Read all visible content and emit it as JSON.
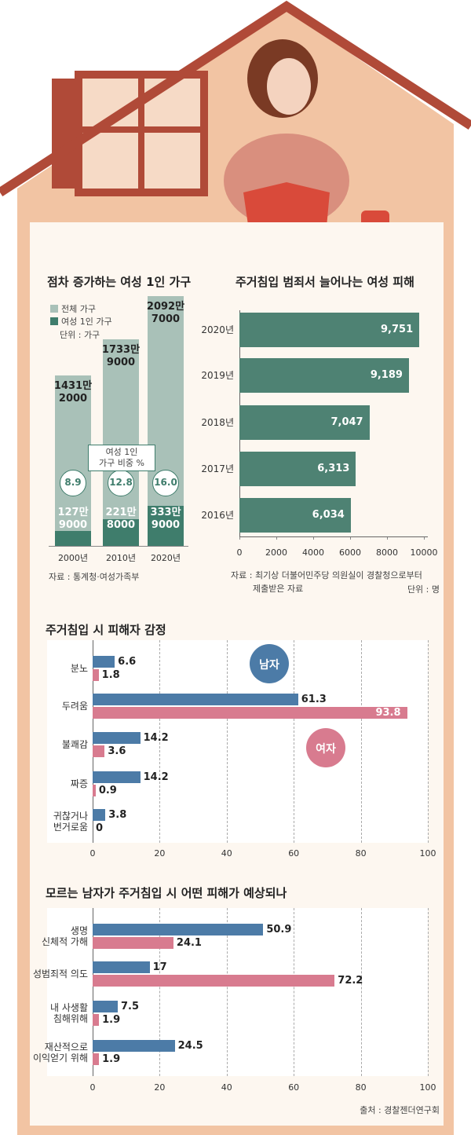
{
  "chart_data": [
    {
      "type": "bar",
      "title": "점차 증가하는 여성 1인 가구",
      "categories": [
        "2000년",
        "2010년",
        "2020년"
      ],
      "series": [
        {
          "name": "전체 가구",
          "color": "#a9c1b8",
          "values": [
            14312000,
            17339000,
            20927000
          ],
          "value_labels": [
            "1431만\n2000",
            "1733만\n9000",
            "2092만\n7000"
          ]
        },
        {
          "name": "여성 1인 가구",
          "color": "#3f7d6c",
          "values": [
            1279000,
            2218000,
            3339000
          ],
          "value_labels": [
            "127만\n9000",
            "221만\n8000",
            "333만\n9000"
          ]
        }
      ],
      "share": {
        "name": "여성 1인\n가구 비중 %",
        "values": [
          8.9,
          12.8,
          16.0
        ],
        "value_labels": [
          "8.9",
          "12.8",
          "16.0"
        ]
      },
      "unit_note": "단위 : 가구",
      "source": "자료 : 통계청·여성가족부"
    },
    {
      "type": "barh",
      "title": "주거침입 범죄서 늘어나는 여성 피해",
      "categories": [
        "2020년",
        "2019년",
        "2018년",
        "2017년",
        "2016년"
      ],
      "values": [
        9751,
        9189,
        7047,
        6313,
        6034
      ],
      "value_labels": [
        "9,751",
        "9,189",
        "7,047",
        "6,313",
        "6,034"
      ],
      "color": "#4e8273",
      "xlim": [
        0,
        10000
      ],
      "xticks": [
        0,
        2000,
        4000,
        6000,
        8000,
        10000
      ],
      "grid": false,
      "note": "자료 : 최기상 더불어민주당 의원실이 경찰청으로부터\n        제출받은 자료",
      "unit_note": "단위 : 명"
    },
    {
      "type": "barh",
      "title": "주거침입 시 피해자 감정",
      "categories": [
        "분노",
        "두려움",
        "불쾌감",
        "짜증",
        "귀찮거나\n번거로움"
      ],
      "series": [
        {
          "name": "남자",
          "color": "#4c7ba7",
          "values": [
            6.6,
            61.3,
            14.2,
            14.2,
            3.8
          ]
        },
        {
          "name": "여자",
          "color": "#d87b8f",
          "values": [
            1.8,
            93.8,
            3.6,
            0.9,
            0
          ]
        }
      ],
      "xlim": [
        0,
        100
      ],
      "xticks": [
        0,
        20,
        40,
        60,
        80,
        100
      ],
      "grid": true
    },
    {
      "type": "barh",
      "title": "모르는 남자가 주거침입 시 어떤 피해가 예상되나",
      "categories": [
        "생명\n신체적 가해",
        "성범죄적 의도",
        "내 사생활\n침해위해",
        "재산적으로\n이익얻기 위해"
      ],
      "series": [
        {
          "color": "#4c7ba7",
          "values": [
            50.9,
            17,
            7.5,
            24.5
          ]
        },
        {
          "color": "#d87b8f",
          "values": [
            24.1,
            72.2,
            1.9,
            1.9
          ]
        }
      ],
      "xlim": [
        0,
        100
      ],
      "xticks": [
        0,
        20,
        40,
        60,
        80,
        100
      ],
      "grid": true,
      "source": "출처 : 경찰젠더연구회"
    }
  ]
}
